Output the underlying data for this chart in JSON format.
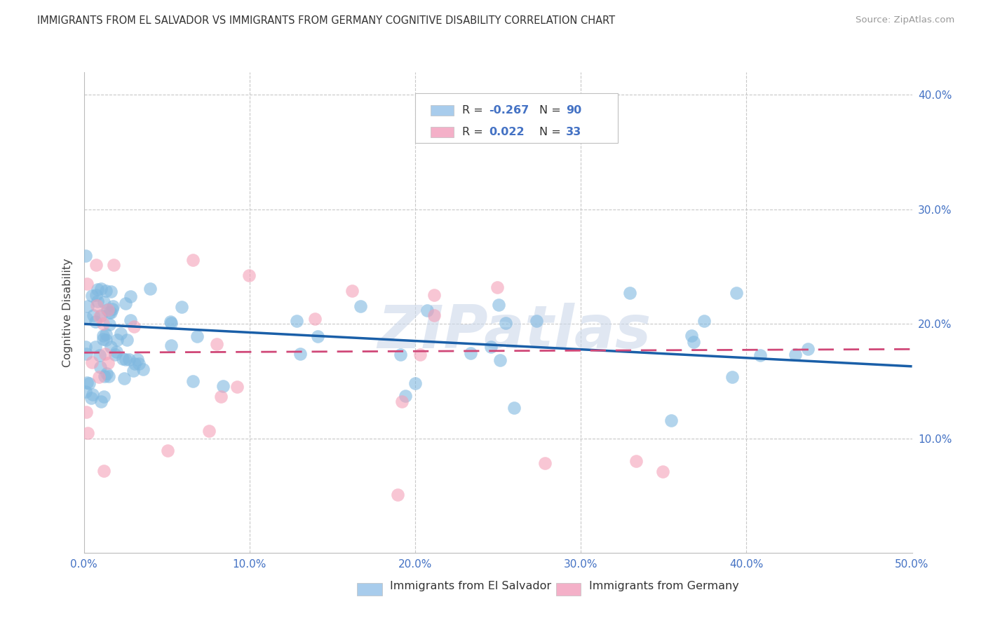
{
  "title": "IMMIGRANTS FROM EL SALVADOR VS IMMIGRANTS FROM GERMANY COGNITIVE DISABILITY CORRELATION CHART",
  "source": "Source: ZipAtlas.com",
  "ylabel": "Cognitive Disability",
  "xlim": [
    0.0,
    0.5
  ],
  "ylim": [
    0.0,
    0.42
  ],
  "xticks": [
    0.0,
    0.1,
    0.2,
    0.3,
    0.4,
    0.5
  ],
  "yticks": [
    0.1,
    0.2,
    0.3,
    0.4
  ],
  "ytick_labels": [
    "10.0%",
    "20.0%",
    "30.0%",
    "40.0%"
  ],
  "xtick_labels": [
    "0.0%",
    "10.0%",
    "20.0%",
    "30.0%",
    "40.0%",
    "50.0%"
  ],
  "series1_color": "#7fb8e0",
  "series2_color": "#f4a0b8",
  "series1_line_color": "#1a5fa8",
  "series2_line_color": "#d04878",
  "series1_R": -0.267,
  "series1_N": 90,
  "series2_R": 0.022,
  "series2_N": 33,
  "legend1_label": "Immigrants from El Salvador",
  "legend2_label": "Immigrants from Germany",
  "watermark": "ZIPatlas",
  "accent_color": "#4472c4",
  "grid_color": "#c8c8c8",
  "title_color": "#333333",
  "source_color": "#999999",
  "trend1_y0": 0.2,
  "trend1_y1": 0.163,
  "trend2_y0": 0.175,
  "trend2_y1": 0.178
}
